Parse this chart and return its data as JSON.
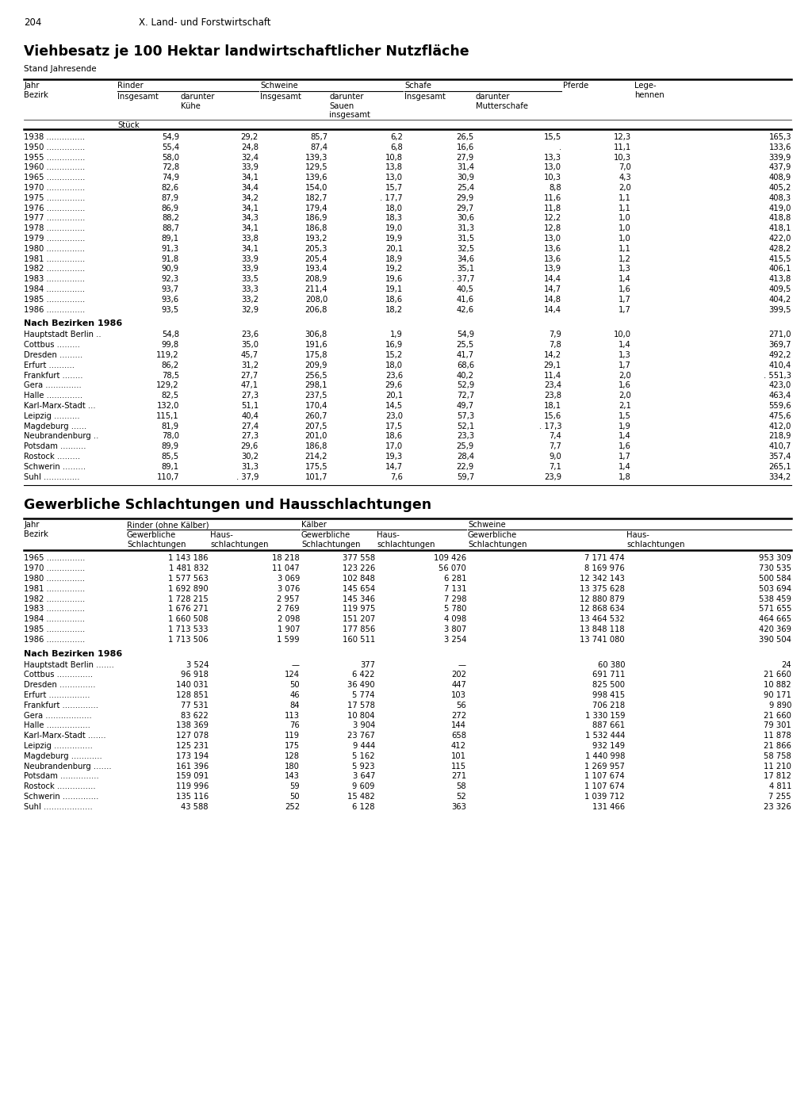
{
  "page_number": "204",
  "page_header": "X. Land- und Forstwirtschaft",
  "title1": "Viehbesatz je 100 Hektar landwirtschaftlicher Nutzfläche",
  "subtitle1": "Stand Jahresende",
  "title2": "Gewerbliche Schlachtungen und Hausschlachtungen",
  "table1_years": [
    [
      "1938",
      "54,9",
      "29,2",
      "85,7",
      "6,2",
      "26,5",
      "15,5",
      "12,3",
      "165,3"
    ],
    [
      "1950",
      "55,4",
      "24,8",
      "87,4",
      "6,8",
      "16,6",
      ".",
      "11,1",
      "133,6"
    ],
    [
      "1955",
      "58,0",
      "32,4",
      "139,3",
      "10,8",
      "27,9",
      "13,3",
      "10,3",
      "339,9"
    ],
    [
      "1960",
      "72,8",
      "33,9",
      "129,5",
      "13,8",
      "31,4",
      "13,0",
      "7,0",
      "437,9"
    ],
    [
      "1965",
      "74,9",
      "34,1",
      "139,6",
      "13,0",
      "30,9",
      "10,3",
      "4,3",
      "408,9"
    ],
    [
      "1970",
      "82,6",
      "34,4",
      "154,0",
      "15,7",
      "25,4",
      "8,8",
      "2,0",
      "405,2"
    ],
    [
      "1975",
      "87,9",
      "34,2",
      "182,7",
      ". 17,7",
      "29,9",
      "11,6",
      "1,1",
      "408,3"
    ],
    [
      "1976",
      "86,9",
      "34,1",
      "179,4",
      "18,0",
      "29,7",
      "11,8",
      "1,1",
      "419,0"
    ],
    [
      "1977",
      "88,2",
      "34,3",
      "186,9",
      "18,3",
      "30,6",
      "12,2",
      "1,0",
      "418,8"
    ],
    [
      "1978",
      "88,7",
      "34,1",
      "186,8",
      "19,0",
      "31,3",
      "12,8",
      "1,0",
      "418,1"
    ],
    [
      "1979",
      "89,1",
      "33,8",
      "193,2",
      "19,9",
      "31,5",
      "13,0",
      "1,0",
      "422,0"
    ],
    [
      "1980",
      "91,3",
      "34,1",
      "205,3",
      "20,1",
      "32,5",
      "13,6",
      "1,1",
      "428,2"
    ],
    [
      "1981",
      "91,8",
      "33,9",
      "205,4",
      "18,9",
      "34,6",
      "13,6",
      "1,2",
      "415,5"
    ],
    [
      "1982",
      "90,9",
      "33,9",
      "193,4",
      "19,2",
      "35,1",
      "13,9",
      "1,3",
      "406,1"
    ],
    [
      "1983",
      "92,3",
      "33,5",
      "208,9",
      "19,6",
      ". 37,7",
      "14,4",
      "1,4",
      "413,8"
    ],
    [
      "1984",
      "93,7",
      "33,3",
      "211,4",
      "19,1",
      "40,5",
      "14,7",
      "1,6",
      "409,5"
    ],
    [
      "1985",
      "93,6",
      "33,2",
      "208,0",
      "18,6",
      "41,6",
      "14,8",
      "1,7",
      "404,2"
    ],
    [
      "1986",
      "93,5",
      "32,9",
      "206,8",
      "18,2",
      "42,6",
      "14,4",
      "1,7",
      "399,5"
    ]
  ],
  "table1_bezirke_header": "Nach Bezirken 1986",
  "table1_bezirke": [
    [
      "Hauptstadt Berlin ..",
      "54,8",
      "23,6",
      "306,8",
      "1,9",
      "54,9",
      "7,9",
      "10,0",
      "271,0"
    ],
    [
      "Cottbus .........",
      "99,8",
      "35,0",
      "191,6",
      "16,9",
      "25,5",
      "7,8",
      "1,4",
      "369,7"
    ],
    [
      "Dresden .........",
      "119,2",
      "45,7",
      "175,8",
      "15,2",
      "41,7",
      "14,2",
      "1,3",
      "492,2"
    ],
    [
      "Erfurt ..........",
      "86,2",
      "31,2",
      "209,9",
      "18,0",
      "68,6",
      "29,1",
      "1,7",
      "410,4"
    ],
    [
      "Frankfurt ........",
      "78,5",
      "27,7",
      "256,5",
      "23,6",
      "40,2",
      "11,4",
      "2,0",
      ". 551,3"
    ],
    [
      "Gera ..............",
      "129,2",
      "47,1",
      "298,1",
      "29,6",
      "52,9",
      "23,4",
      "1,6",
      "423,0"
    ],
    [
      "Halle ..............",
      "82,5",
      "27,3",
      "237,5",
      "20,1",
      "72,7",
      "23,8",
      "2,0",
      "463,4"
    ],
    [
      "Karl-Marx-Stadt ...",
      "132,0",
      "51,1",
      "170,4",
      "14,5",
      "49,7",
      "18,1",
      "2,1",
      "559,6"
    ],
    [
      "Leipzig ..........",
      "115,1",
      "40,4",
      "260,7",
      "23,0",
      "57,3",
      "15,6",
      "1,5",
      "475,6"
    ],
    [
      "Magdeburg ......",
      "81,9",
      "27,4",
      "207,5",
      "17,5",
      "52,1",
      ". 17,3",
      "1,9",
      "412,0"
    ],
    [
      "Neubrandenburg ..",
      "78,0",
      "27,3",
      "201,0",
      "18,6",
      "23,3",
      "7,4",
      "1,4",
      "218,9"
    ],
    [
      "Potsdam ..........",
      "89,9",
      "29,6",
      "186,8",
      "17,0",
      "25,9",
      "7,7",
      "1,6",
      "410,7"
    ],
    [
      "Rostock .........",
      "85,5",
      "30,2",
      "214,2",
      "19,3",
      "28,4",
      "9,0",
      "1,7",
      "357,4"
    ],
    [
      "Schwerin .........",
      "89,1",
      "31,3",
      "175,5",
      "14,7",
      "22,9",
      "7,1",
      "1,4",
      "265,1"
    ],
    [
      "Suhl ..............",
      "110,7",
      ". 37,9",
      "101,7",
      "7,6",
      "59,7",
      "23,9",
      "1,8",
      "334,2"
    ]
  ],
  "table2_years": [
    [
      "1965",
      "1 143 186",
      "18 218",
      "377 558",
      "109 426",
      "7 171 474",
      "953 309"
    ],
    [
      "1970",
      "1 481 832",
      "11 047",
      "123 226",
      "56 070",
      "8 169 976",
      "730 535"
    ],
    [
      "1980",
      "1 577 563",
      "3 069",
      "102 848",
      "6 281",
      "12 342 143",
      "500 584"
    ],
    [
      "1981",
      "1 692 890",
      "3 076",
      "145 654",
      "7 131",
      "13 375 628",
      "503 694"
    ],
    [
      "1982",
      "1 728 215",
      "2 957",
      "145 346",
      "7 298",
      "12 880 879",
      "538 459"
    ],
    [
      "1983",
      "1 676 271",
      "2 769",
      "119 975",
      "5 780",
      "12 868 634",
      "571 655"
    ],
    [
      "1984",
      "1 660 508",
      "2 098",
      "151 207",
      "4 098",
      "13 464 532",
      "464 665"
    ],
    [
      "1985",
      "1 713 533",
      "1 907",
      "177 856",
      "3 807",
      "13 848 118",
      "420 369"
    ],
    [
      "1986",
      "1 713 506",
      "1 599",
      "160 511",
      "3 254",
      "13 741 080",
      "390 504"
    ]
  ],
  "table2_bezirke_header": "Nach Bezirken 1986",
  "table2_bezirke": [
    [
      "Hauptstadt Berlin .......",
      "3 524",
      "—",
      "377",
      "—",
      "60 380",
      "24"
    ],
    [
      "Cottbus ..............",
      "96 918",
      "124",
      "6 422",
      "202",
      "691 711",
      "21 660"
    ],
    [
      "Dresden ..............",
      "140 031",
      "50",
      "36 490",
      "447",
      "825 500",
      "10 882"
    ],
    [
      "Erfurt ................",
      "128 851",
      "46",
      "5 774",
      "103",
      "998 415",
      "90 171"
    ],
    [
      "Frankfurt ..............",
      "77 531",
      "84",
      "17 578",
      "56",
      "706 218",
      "9 890"
    ],
    [
      "Gera ..................",
      "83 622",
      "113",
      "10 804",
      "272",
      "1 330 159",
      "21 660"
    ],
    [
      "Halle .................",
      "138 369",
      "76",
      "3 904",
      "144",
      "887 661",
      "79 301"
    ],
    [
      "Karl-Marx-Stadt .......",
      "127 078",
      "119",
      "23 767",
      "658",
      "1 532 444",
      "11 878"
    ],
    [
      "Leipzig ...............",
      "125 231",
      "175",
      "9 444",
      "412",
      "932 149",
      "21 866"
    ],
    [
      "Magdeburg ............",
      "173 194",
      "128",
      "5 162",
      "101",
      "1 440 998",
      "58 758"
    ],
    [
      "Neubrandenburg .......",
      "161 396",
      "180",
      "5 923",
      "115",
      "1 269 957",
      "11 210"
    ],
    [
      "Potsdam ...............",
      "159 091",
      "143",
      "3 647",
      "271",
      "1 107 674",
      "17 812"
    ],
    [
      "Rostock ...............",
      "119 996",
      "59",
      "9 609",
      "58",
      "1 107 674",
      "4 811"
    ],
    [
      "Schwerin ..............",
      "135 116",
      "50",
      "15 482",
      "52",
      "1 039 712",
      "7 255"
    ],
    [
      "Suhl ...................",
      "43 588",
      "252",
      "6 128",
      "363",
      "131 466",
      "23 326"
    ]
  ]
}
